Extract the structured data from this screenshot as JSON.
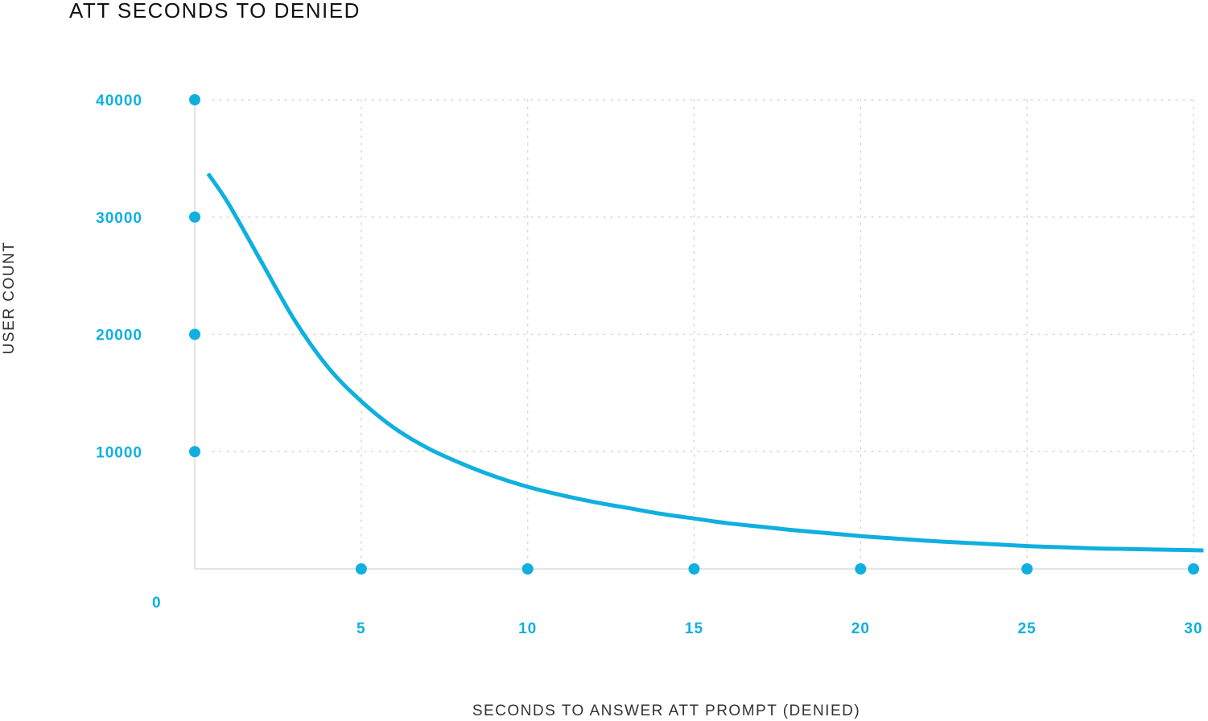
{
  "colors": {
    "accent": "#0fb0df",
    "title": "#111111",
    "axis_label": "#333333",
    "grid": "#d8d8d8",
    "axis": "#e4e4e4"
  },
  "chart_data": {
    "type": "line",
    "title": "ATT SECONDS TO DENIED",
    "xlabel": "SECONDS TO ANSWER ATT PROMPT (DENIED)",
    "ylabel": "USER COUNT",
    "xlim": [
      0,
      30
    ],
    "ylim": [
      0,
      40000
    ],
    "x_ticks": [
      5,
      10,
      15,
      20,
      25,
      30
    ],
    "y_ticks": [
      10000,
      20000,
      30000,
      40000
    ],
    "y_zero_label": "0",
    "grid": true,
    "series": [
      {
        "x": [
          0.4,
          1,
          2,
          3,
          4,
          5,
          6,
          7,
          8,
          9,
          10,
          11,
          12,
          13,
          14,
          15,
          16,
          17,
          18,
          19,
          20,
          21,
          22,
          23,
          24,
          25,
          26,
          27,
          28,
          29,
          30,
          30.3
        ],
        "y": [
          33700,
          31200,
          26200,
          21200,
          17200,
          14300,
          12000,
          10300,
          9000,
          7900,
          7000,
          6300,
          5700,
          5200,
          4700,
          4300,
          3900,
          3600,
          3300,
          3050,
          2800,
          2600,
          2400,
          2250,
          2100,
          1950,
          1850,
          1750,
          1700,
          1650,
          1600,
          1580
        ]
      }
    ]
  }
}
